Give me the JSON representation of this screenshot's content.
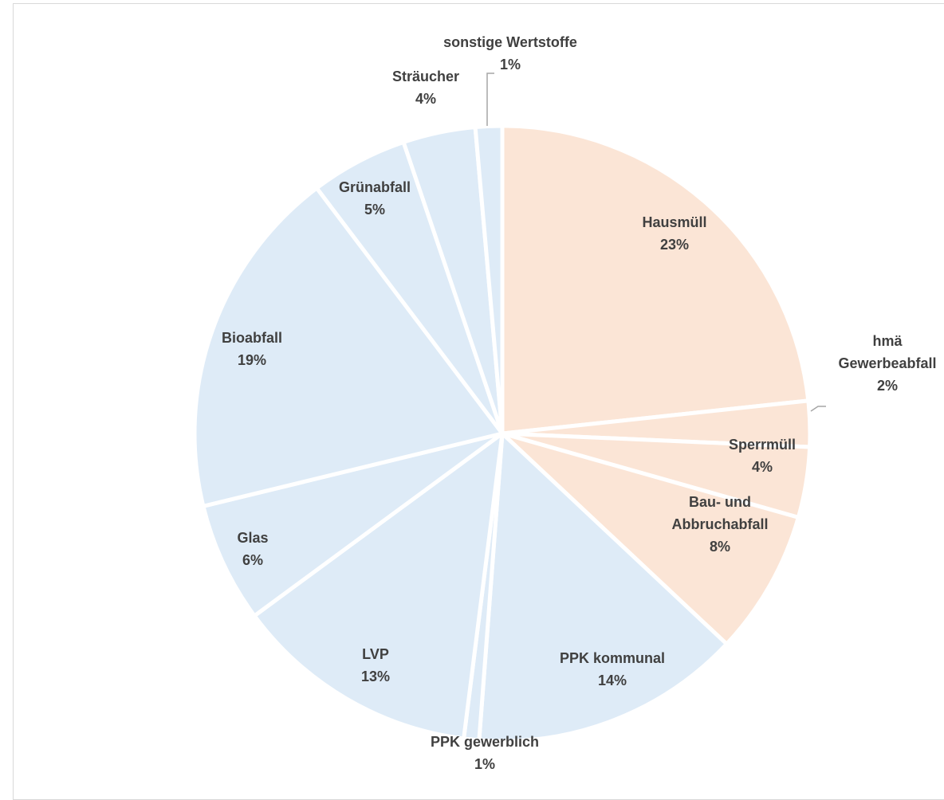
{
  "chart_data": {
    "type": "pie",
    "title": "",
    "start_angle_deg": 0,
    "direction": "clockwise",
    "slices": [
      {
        "label": [
          "Hausmüll"
        ],
        "value": 23.3,
        "percent_label": "23%",
        "color": "#fbe5d6"
      },
      {
        "label": [
          "hmä",
          "Gewerbeabfall"
        ],
        "value": 2.4,
        "percent_label": "2%",
        "color": "#fbe5d6",
        "leader": true
      },
      {
        "label": [
          "Sperrmüll"
        ],
        "value": 3.7,
        "percent_label": "4%",
        "color": "#fbe5d6"
      },
      {
        "label": [
          "Bau- und",
          "Abbruchabfall"
        ],
        "value": 7.6,
        "percent_label": "8%",
        "color": "#fbe5d6"
      },
      {
        "label": [
          "PPK kommunal"
        ],
        "value": 14.2,
        "percent_label": "14%",
        "color": "#deebf7"
      },
      {
        "label": [
          "PPK gewerblich"
        ],
        "value": 0.8,
        "percent_label": "1%",
        "color": "#deebf7"
      },
      {
        "label": [
          "LVP"
        ],
        "value": 12.9,
        "percent_label": "13%",
        "color": "#deebf7"
      },
      {
        "label": [
          "Glas"
        ],
        "value": 6.3,
        "percent_label": "6%",
        "color": "#deebf7"
      },
      {
        "label": [
          "Bioabfall"
        ],
        "value": 18.5,
        "percent_label": "19%",
        "color": "#deebf7"
      },
      {
        "label": [
          "Grünabfall"
        ],
        "value": 5.1,
        "percent_label": "5%",
        "color": "#deebf7"
      },
      {
        "label": [
          "Sträucher"
        ],
        "value": 3.8,
        "percent_label": "4%",
        "color": "#deebf7"
      },
      {
        "label": [
          "sonstige Wertstoffe"
        ],
        "value": 1.4,
        "percent_label": "1%",
        "color": "#deebf7",
        "leader": true
      }
    ]
  }
}
